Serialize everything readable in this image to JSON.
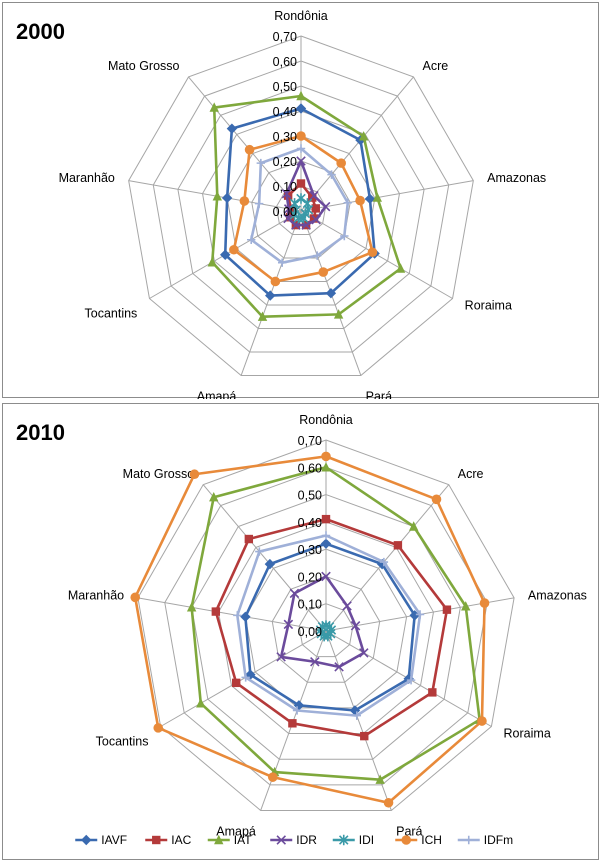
{
  "chart_data": [
    {
      "type": "radar",
      "title": "2000",
      "categories": [
        "Rondônia",
        "Acre",
        "Amazonas",
        "Roraima",
        "Pará",
        "Amapá",
        "Tocantins",
        "Maranhão",
        "Mato Grosso"
      ],
      "rlim": [
        0,
        0.7
      ],
      "ticks": [
        "0,00",
        "0,10",
        "0,20",
        "0,30",
        "0,40",
        "0,50",
        "0,60",
        "0,70"
      ],
      "grid": true,
      "series": [
        {
          "name": "IAVF",
          "color": "#3a6ab0",
          "marker": "diamond",
          "values": [
            0.41,
            0.37,
            0.28,
            0.34,
            0.35,
            0.36,
            0.35,
            0.3,
            0.43
          ]
        },
        {
          "name": "IAC",
          "color": "#b43a3a",
          "marker": "square",
          "values": [
            0.11,
            0.07,
            0.06,
            0.06,
            0.06,
            0.06,
            0.05,
            0.04,
            0.08
          ]
        },
        {
          "name": "IAT",
          "color": "#7fa83c",
          "marker": "triangle",
          "values": [
            0.46,
            0.39,
            0.31,
            0.46,
            0.44,
            0.45,
            0.41,
            0.34,
            0.54
          ]
        },
        {
          "name": "IDR",
          "color": "#6b4b9c",
          "marker": "x",
          "values": [
            0.2,
            0.08,
            0.1,
            0.07,
            0.06,
            0.06,
            0.06,
            0.05,
            0.09
          ]
        },
        {
          "name": "IDI",
          "color": "#3a9aa8",
          "marker": "star",
          "values": [
            0.05,
            0.04,
            0.03,
            0.02,
            0.03,
            0.03,
            0.03,
            0.02,
            0.04
          ]
        },
        {
          "name": "ICH",
          "color": "#e88a3a",
          "marker": "circle",
          "values": [
            0.3,
            0.25,
            0.24,
            0.33,
            0.26,
            0.3,
            0.31,
            0.23,
            0.32
          ]
        },
        {
          "name": "IDFm",
          "color": "#9fb0d8",
          "marker": "plus",
          "values": [
            0.25,
            0.19,
            0.19,
            0.2,
            0.19,
            0.22,
            0.23,
            0.17,
            0.25
          ]
        }
      ]
    },
    {
      "type": "radar",
      "title": "2010",
      "categories": [
        "Rondônia",
        "Acre",
        "Amazonas",
        "Roraima",
        "Pará",
        "Amapá",
        "Tocantins",
        "Maranhão",
        "Mato Grosso"
      ],
      "rlim": [
        0,
        0.7
      ],
      "ticks": [
        "0,00",
        "0,10",
        "0,20",
        "0,30",
        "0,40",
        "0,50",
        "0,60",
        "0,70"
      ],
      "grid": true,
      "legend": "bottom",
      "series": [
        {
          "name": "IAVF",
          "color": "#3a6ab0",
          "marker": "diamond",
          "values": [
            0.32,
            0.32,
            0.33,
            0.35,
            0.31,
            0.29,
            0.32,
            0.3,
            0.32
          ]
        },
        {
          "name": "IAC",
          "color": "#b43a3a",
          "marker": "square",
          "values": [
            0.41,
            0.41,
            0.45,
            0.45,
            0.41,
            0.36,
            0.38,
            0.41,
            0.44
          ]
        },
        {
          "name": "IAT",
          "color": "#7fa83c",
          "marker": "triangle",
          "values": [
            0.6,
            0.5,
            0.52,
            0.65,
            0.58,
            0.55,
            0.53,
            0.5,
            0.64
          ]
        },
        {
          "name": "IDR",
          "color": "#6b4b9c",
          "marker": "x",
          "values": [
            0.2,
            0.12,
            0.11,
            0.16,
            0.14,
            0.12,
            0.19,
            0.14,
            0.18
          ]
        },
        {
          "name": "IDI",
          "color": "#3a9aa8",
          "marker": "star",
          "values": [
            0.02,
            0.02,
            0.02,
            0.02,
            0.02,
            0.02,
            0.02,
            0.02,
            0.02
          ]
        },
        {
          "name": "ICH",
          "color": "#e88a3a",
          "marker": "circle",
          "values": [
            0.64,
            0.63,
            0.59,
            0.66,
            0.67,
            0.57,
            0.71,
            0.71,
            0.75
          ]
        },
        {
          "name": "IDFm",
          "color": "#9fb0d8",
          "marker": "plus",
          "values": [
            0.35,
            0.33,
            0.35,
            0.36,
            0.33,
            0.31,
            0.34,
            0.33,
            0.38
          ]
        }
      ]
    }
  ]
}
